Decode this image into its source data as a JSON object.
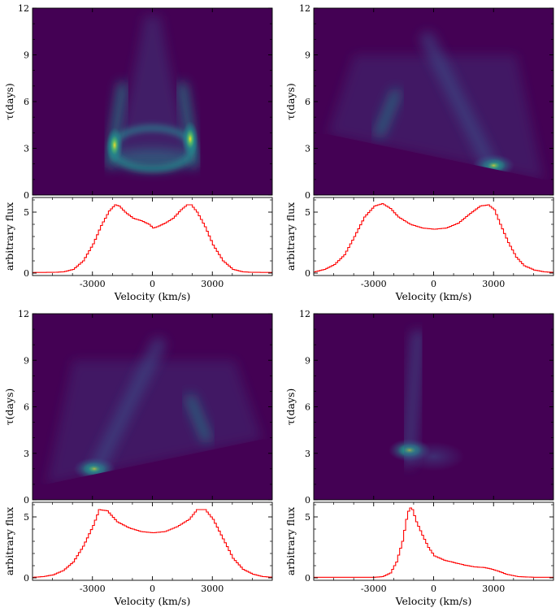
{
  "chart_data": [
    {
      "type": "heatmap",
      "panel": "top-left",
      "ylabel": "τ(days)",
      "ylim": [
        0,
        12
      ],
      "yticks": [
        "0",
        "3",
        "6",
        "9",
        "12"
      ],
      "xlim": [
        -6000,
        6000
      ],
      "background_color": "#440154",
      "colormap": [
        "#440154",
        "#3b528b",
        "#21908d",
        "#5dc963",
        "#fde725"
      ],
      "features": [
        {
          "kind": "ring",
          "center_velocity": 0,
          "center_tau": 3.0,
          "half_width_velocity": 2000,
          "half_height_tau": 1.3
        },
        {
          "kind": "arm",
          "x_at_tau2": -2100,
          "x_at_tau7": -1500,
          "peak_tau": 3.2
        },
        {
          "kind": "arm",
          "x_at_tau2": 2100,
          "x_at_tau7": 1500,
          "peak_tau": 3.6
        },
        {
          "kind": "plume",
          "center_velocity": 0,
          "top_tau": 11.5
        }
      ]
    },
    {
      "type": "heatmap",
      "panel": "top-right",
      "ylabel": "τ(days)",
      "ylim": [
        0,
        12
      ],
      "yticks": [
        "0",
        "3",
        "6",
        "9",
        "12"
      ],
      "xlim": [
        -6000,
        6000
      ],
      "lower_edge": {
        "from": [
          -5300,
          3.9
        ],
        "to": [
          5500,
          1.0
        ]
      },
      "features": [
        {
          "kind": "hotspot",
          "velocity": 3000,
          "tau": 1.9
        },
        {
          "kind": "arm",
          "from": [
            -2700,
            4.0
          ],
          "to": [
            -1900,
            6.5
          ]
        },
        {
          "kind": "streak",
          "from": [
            2800,
            2.0
          ],
          "to": [
            -300,
            10.0
          ]
        }
      ]
    },
    {
      "type": "heatmap",
      "panel": "bottom-left",
      "ylabel": "τ(days)",
      "ylim": [
        0,
        12
      ],
      "yticks": [
        "0",
        "3",
        "6",
        "9",
        "12"
      ],
      "xlim": [
        -6000,
        6000
      ],
      "lower_edge": {
        "from": [
          -5300,
          1.0
        ],
        "to": [
          5500,
          3.9
        ]
      },
      "features": [
        {
          "kind": "hotspot",
          "velocity": -2900,
          "tau": 2.0
        },
        {
          "kind": "arm",
          "from": [
            2700,
            4.0
          ],
          "to": [
            1900,
            6.5
          ]
        },
        {
          "kind": "streak",
          "from": [
            -2800,
            2.0
          ],
          "to": [
            300,
            10.0
          ]
        }
      ]
    },
    {
      "type": "heatmap",
      "panel": "bottom-right",
      "ylabel": "τ(days)",
      "ylim": [
        0,
        12
      ],
      "yticks": [
        "0",
        "3",
        "6",
        "9",
        "12"
      ],
      "xlim": [
        -6000,
        6000
      ],
      "features": [
        {
          "kind": "hotspot",
          "velocity": -1200,
          "tau": 3.2
        },
        {
          "kind": "streak",
          "from": [
            -1250,
            2.6
          ],
          "to": [
            -800,
            10.5
          ]
        },
        {
          "kind": "blob",
          "velocity": 0,
          "tau": 2.8
        }
      ]
    },
    {
      "type": "line",
      "panel": "top-left",
      "xlabel": "Velocity (km/s)",
      "ylabel": "arbitrary flux",
      "xlim": [
        -6000,
        6000
      ],
      "ylim": [
        -0.2,
        6.2
      ],
      "xticks": [
        "-3000",
        "0",
        "3000"
      ],
      "yticks": [
        "0",
        "5"
      ],
      "color": "#ff0000",
      "x": [
        -6000,
        -5000,
        -4500,
        -4000,
        -3500,
        -3000,
        -2600,
        -2200,
        -1900,
        -1700,
        -1400,
        -1000,
        -600,
        -200,
        0,
        200,
        600,
        1000,
        1400,
        1700,
        1900,
        2200,
        2600,
        3000,
        3500,
        4000,
        4500,
        5000,
        6000
      ],
      "y": [
        0.05,
        0.06,
        0.1,
        0.3,
        1.0,
        2.4,
        3.9,
        5.1,
        5.6,
        5.5,
        5.0,
        4.5,
        4.3,
        4.0,
        3.7,
        3.8,
        4.1,
        4.5,
        5.2,
        5.6,
        5.6,
        5.0,
        3.8,
        2.3,
        1.0,
        0.3,
        0.1,
        0.06,
        0.05
      ]
    },
    {
      "type": "line",
      "panel": "top-right",
      "xlabel": "Velocity (km/s)",
      "ylabel": "arbitrary flux",
      "xlim": [
        -6000,
        6000
      ],
      "ylim": [
        -0.2,
        6.2
      ],
      "xticks": [
        "-3000",
        "0",
        "3000"
      ],
      "yticks": [
        "0",
        "5"
      ],
      "color": "#ff0000",
      "x": [
        -6000,
        -5500,
        -5000,
        -4500,
        -4000,
        -3500,
        -3000,
        -2600,
        -2200,
        -1800,
        -1200,
        -600,
        0,
        600,
        1200,
        1800,
        2300,
        2700,
        3000,
        3300,
        3700,
        4100,
        4500,
        5000,
        5500,
        6000
      ],
      "y": [
        0.1,
        0.3,
        0.7,
        1.5,
        3.0,
        4.6,
        5.5,
        5.7,
        5.3,
        4.6,
        4.0,
        3.7,
        3.6,
        3.7,
        4.1,
        4.9,
        5.5,
        5.6,
        5.2,
        4.0,
        2.5,
        1.3,
        0.6,
        0.25,
        0.1,
        0.05
      ]
    },
    {
      "type": "line",
      "panel": "bottom-left",
      "xlabel": "Velocity (km/s)",
      "ylabel": "arbitrary flux",
      "xlim": [
        -6000,
        6000
      ],
      "ylim": [
        -0.2,
        6.2
      ],
      "xticks": [
        "-3000",
        "0",
        "3000"
      ],
      "yticks": [
        "0",
        "5"
      ],
      "color": "#ff0000",
      "x": [
        -6000,
        -5500,
        -5000,
        -4500,
        -4000,
        -3500,
        -3000,
        -2700,
        -2300,
        -1800,
        -1200,
        -600,
        0,
        600,
        1200,
        1800,
        2200,
        2600,
        3000,
        3500,
        4000,
        4500,
        5000,
        5500,
        6000
      ],
      "y": [
        0.05,
        0.1,
        0.25,
        0.6,
        1.3,
        2.6,
        4.3,
        5.6,
        5.5,
        4.6,
        4.1,
        3.8,
        3.7,
        3.8,
        4.2,
        4.8,
        5.6,
        5.6,
        4.8,
        3.2,
        1.6,
        0.7,
        0.3,
        0.1,
        0.05
      ]
    },
    {
      "type": "line",
      "panel": "bottom-right",
      "xlabel": "Velocity (km/s)",
      "ylabel": "arbitrary flux",
      "xlim": [
        -6000,
        6000
      ],
      "ylim": [
        -0.2,
        6.2
      ],
      "xticks": [
        "-3000",
        "0",
        "3000"
      ],
      "yticks": [
        "0",
        "5"
      ],
      "color": "#ff0000",
      "x": [
        -6000,
        -3000,
        -2600,
        -2200,
        -1900,
        -1600,
        -1400,
        -1250,
        -1100,
        -900,
        -600,
        -300,
        0,
        500,
        1000,
        1500,
        2000,
        2500,
        2800,
        3200,
        3600,
        4200,
        5000,
        6000
      ],
      "y": [
        0.05,
        0.05,
        0.1,
        0.4,
        1.3,
        3.0,
        4.8,
        5.8,
        5.6,
        4.6,
        3.5,
        2.5,
        1.8,
        1.45,
        1.25,
        1.05,
        0.9,
        0.85,
        0.75,
        0.55,
        0.3,
        0.1,
        0.05,
        0.05
      ]
    }
  ]
}
